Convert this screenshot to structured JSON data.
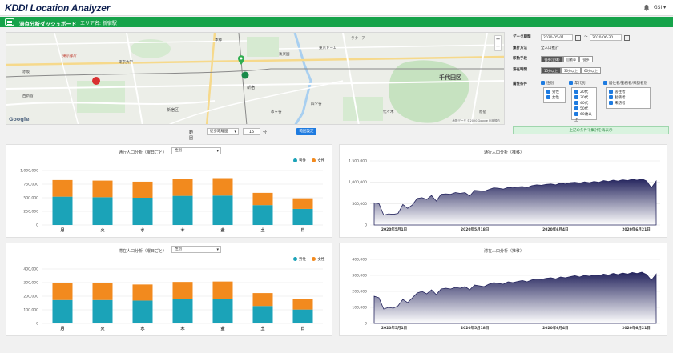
{
  "app": {
    "title": "KDDI Location Analyzer",
    "user": "GSI ▾"
  },
  "subheader": {
    "title": "滞点分析ダッシュボード",
    "area": "エリア名: 新宿駅"
  },
  "map": {
    "google": "Google",
    "copyright": "地図データ ©2020 Google   利用規約",
    "labels": [
      "東京都庁",
      "新宿",
      "四ツ谷",
      "千代田区",
      "東京ドーム",
      "ラクーア",
      "新宿区",
      "本郷",
      "東京大学",
      "市ヶ谷",
      "後楽園",
      "西新宿",
      "代々木",
      "原宿",
      "赤坂"
    ]
  },
  "radius": {
    "label": "範囲",
    "mode": "徒歩距離圏",
    "value": "15",
    "unit": "分",
    "button": "範囲設定"
  },
  "panel": {
    "date_label": "データ期間",
    "date_from": "2020-05-01",
    "date_sep": "〜",
    "date_to": "2020-06-30",
    "method_label": "集計方法",
    "method_value": "全人口推計",
    "transport_label": "移動手段",
    "transport_options": [
      "徒歩(全体)",
      "自動車",
      "徒歩"
    ],
    "stay_label": "滞在時間",
    "stay_options": [
      "15分以上",
      "30分以上",
      "60分以上"
    ],
    "attr_label": "属性条件",
    "gender_title": "性別",
    "gender_items": [
      "男性",
      "女性"
    ],
    "age_title": "年代別",
    "age_items": [
      "20代",
      "30代",
      "40代",
      "50代",
      "60歳以上"
    ],
    "resident_title": "居住者/勤務者/来訪者別",
    "resident_items": [
      "居住者",
      "勤務者",
      "来訪者"
    ],
    "recalc": "上記の条件で集計を再表示"
  },
  "colors": {
    "male": "#1ba3b8",
    "female": "#f28a1e",
    "trend": "#25255e",
    "brand": "#16a34a"
  },
  "chart_data": [
    {
      "type": "bar",
      "title": "通行人口分析（曜日ごと）",
      "select": "性別",
      "categories": [
        "月",
        "火",
        "水",
        "木",
        "金",
        "土",
        "日"
      ],
      "series": [
        {
          "name": "男性",
          "values": [
            520000,
            510000,
            500000,
            535000,
            540000,
            365000,
            295000
          ]
        },
        {
          "name": "女性",
          "values": [
            305000,
            305000,
            295000,
            305000,
            320000,
            225000,
            195000
          ]
        }
      ],
      "ylim": [
        0,
        1000000
      ],
      "yticks": [
        "0",
        "250,000",
        "500,000",
        "750,000",
        "1,000,000"
      ]
    },
    {
      "type": "area",
      "title": "通行人口分析（推移）",
      "ylim": [
        0,
        1500000
      ],
      "yticks": [
        "0",
        "500,000",
        "1,000,000",
        "1,500,000"
      ],
      "xticks": [
        "2020年5月1日",
        "2020年5月18日",
        "2020年6月4日",
        "2020年6月21日"
      ],
      "values": [
        520000,
        500000,
        230000,
        260000,
        250000,
        270000,
        480000,
        390000,
        470000,
        620000,
        640000,
        600000,
        690000,
        560000,
        720000,
        730000,
        720000,
        760000,
        740000,
        760000,
        680000,
        810000,
        800000,
        790000,
        830000,
        870000,
        860000,
        840000,
        880000,
        870000,
        890000,
        900000,
        880000,
        920000,
        940000,
        930000,
        950000,
        960000,
        940000,
        980000,
        960000,
        990000,
        1000000,
        980000,
        1010000,
        990000,
        1020000,
        1000000,
        1040000,
        1020000,
        1050000,
        1030000,
        1060000,
        1040000,
        1070000,
        1050000,
        1080000,
        1030000,
        870000,
        1030000
      ]
    },
    {
      "type": "bar",
      "title": "滞在人口分析（曜日ごと）",
      "select": "性別",
      "categories": [
        "月",
        "火",
        "水",
        "木",
        "金",
        "土",
        "日"
      ],
      "series": [
        {
          "name": "男性",
          "values": [
            172000,
            172000,
            168000,
            178000,
            178000,
            128000,
            102000
          ]
        },
        {
          "name": "女性",
          "values": [
            123000,
            124000,
            118000,
            127000,
            130000,
            95000,
            80000
          ]
        }
      ],
      "ylim": [
        0,
        400000
      ],
      "yticks": [
        "0",
        "100,000",
        "200,000",
        "300,000",
        "400,000"
      ]
    },
    {
      "type": "area",
      "title": "滞在人口分析（推移）",
      "ylim": [
        0,
        400000
      ],
      "yticks": [
        "0",
        "100,000",
        "200,000",
        "300,000",
        "400,000"
      ],
      "xticks": [
        "2020年5月1日",
        "2020年5月18日",
        "2020年6月4日",
        "2020年6月21日"
      ],
      "values": [
        170000,
        160000,
        90000,
        100000,
        95000,
        110000,
        150000,
        130000,
        160000,
        190000,
        200000,
        185000,
        210000,
        180000,
        215000,
        220000,
        215000,
        225000,
        220000,
        230000,
        210000,
        240000,
        235000,
        230000,
        245000,
        255000,
        250000,
        245000,
        260000,
        255000,
        262000,
        268000,
        260000,
        272000,
        278000,
        275000,
        282000,
        285000,
        278000,
        290000,
        285000,
        292000,
        298000,
        290000,
        300000,
        295000,
        302000,
        298000,
        308000,
        302000,
        312000,
        305000,
        315000,
        308000,
        318000,
        312000,
        320000,
        305000,
        270000,
        308000
      ]
    }
  ]
}
